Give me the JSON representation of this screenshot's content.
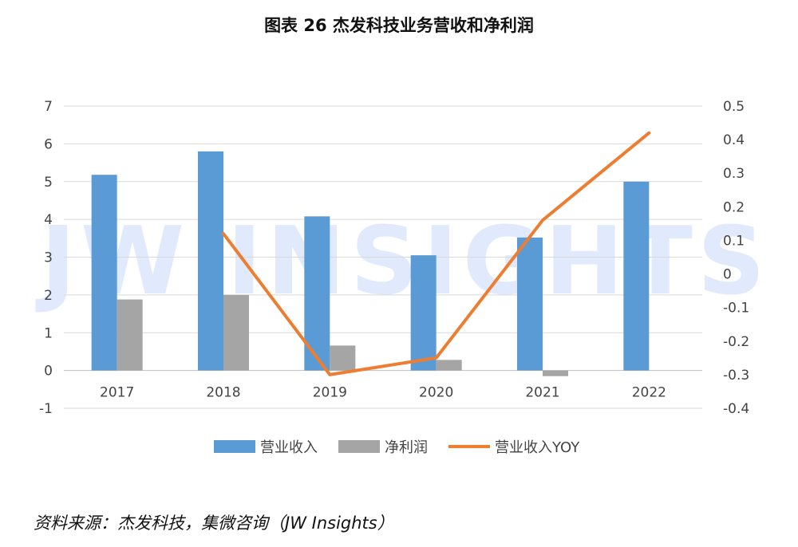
{
  "title": "图表 26  杰发科技业务营收和净利润",
  "source": "资料来源：杰发科技，集微咨询（JW Insights）",
  "watermark": "JW INSIGHTS",
  "chart_data": {
    "type": "bar",
    "categories": [
      "2017",
      "2018",
      "2019",
      "2020",
      "2021",
      "2022"
    ],
    "series": [
      {
        "name": "营业收入",
        "type": "bar",
        "axis": "left",
        "color": "#5b9bd5",
        "values": [
          5.18,
          5.8,
          4.08,
          3.05,
          3.52,
          5.0
        ]
      },
      {
        "name": "净利润",
        "type": "bar",
        "axis": "left",
        "color": "#a5a5a5",
        "values": [
          1.88,
          2.0,
          0.66,
          0.28,
          -0.15,
          null
        ]
      },
      {
        "name": "营业收入YOY",
        "type": "line",
        "axis": "right",
        "color": "#ed7d31",
        "values": [
          null,
          0.12,
          -0.3,
          -0.25,
          0.16,
          0.42
        ]
      }
    ],
    "y_left": {
      "min": -1,
      "max": 7,
      "ticks": [
        -1,
        0,
        1,
        2,
        3,
        4,
        5,
        6,
        7
      ]
    },
    "y_right": {
      "min": -0.4,
      "max": 0.5,
      "ticks": [
        -0.4,
        -0.3,
        -0.2,
        -0.1,
        0,
        0.1,
        0.2,
        0.3,
        0.4,
        0.5
      ]
    },
    "grid": true,
    "legend_position": "bottom"
  }
}
